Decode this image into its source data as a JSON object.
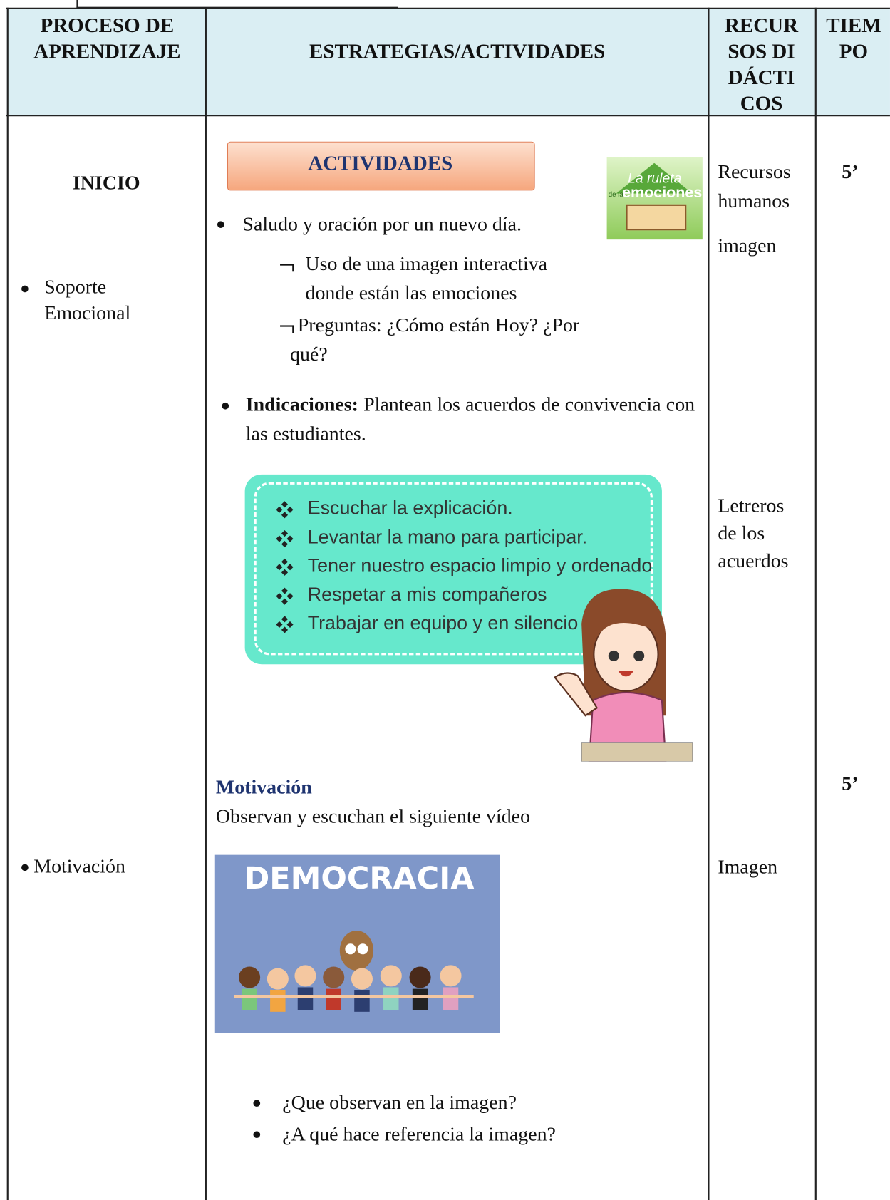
{
  "table": {
    "headers": [
      "PROCESO DE APRENDIZAJE",
      "ESTRATEGIAS/ACTIVIDADES",
      "RECURSOS DIDÁCTICOS",
      "TIEMPO"
    ],
    "process": {
      "stage": "INICIO",
      "items": [
        "Soporte Emocional",
        "Motivación"
      ]
    },
    "activities": {
      "banner": "ACTIVIDADES",
      "roulette_image": {
        "line1": "La ruleta",
        "line2": "de las",
        "line3": "emociones"
      },
      "greeting": "Saludo y oración por un nuevo día.",
      "sub_items": [
        "Uso de una imagen interactiva donde están las emociones",
        "Preguntas: ¿Cómo están Hoy? ¿Por qué?"
      ],
      "instructions": {
        "label": "Indicaciones:",
        "text": "Plantean los acuerdos de convivencia con las estudiantes."
      },
      "agreements": [
        "Escuchar la explicación.",
        "Levantar la mano para participar.",
        "Tener nuestro espacio limpio y ordenado",
        "Respetar a mis compañeros",
        "Trabajar en equipo y en silencio"
      ],
      "motivation": {
        "heading": "Motivación",
        "text": "Observan y escuchan el siguiente vídeo",
        "image_title": "DEMOCRACIA"
      },
      "questions": [
        "¿Que observan en la imagen?",
        "¿A qué hace referencia la imagen?"
      ]
    },
    "resources": [
      "Recursos humanos",
      "imagen",
      "Letreros de los acuerdos",
      "Imagen"
    ],
    "times": [
      "5’",
      "5’"
    ]
  }
}
